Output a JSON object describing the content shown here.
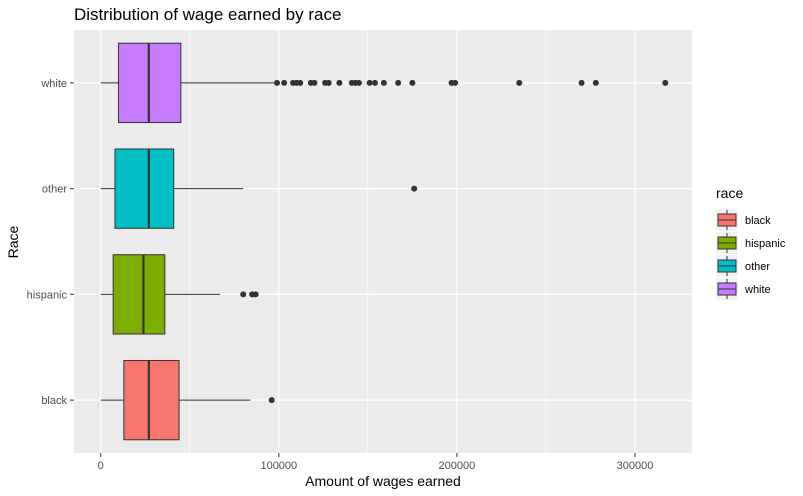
{
  "chart_data": {
    "type": "boxplot",
    "title": "Distribution of wage earned by race",
    "xlabel": "Amount of wages earned",
    "ylabel": "Race",
    "xlim": [
      -15000,
      332000
    ],
    "x_ticks": [
      0,
      100000,
      200000,
      300000
    ],
    "x_tick_labels": [
      "0",
      "100000",
      "200000",
      "300000"
    ],
    "grid": true,
    "orientation": "horizontal",
    "legend": {
      "title": "race",
      "position": "right",
      "entries": [
        "black",
        "hispanic",
        "other",
        "white"
      ]
    },
    "colors": {
      "black": "#F8766D",
      "hispanic": "#7CAE00",
      "other": "#00BFC4",
      "white": "#C77CFF"
    },
    "categories": [
      "black",
      "hispanic",
      "other",
      "white"
    ],
    "boxes": [
      {
        "name": "black",
        "whisker_low": 0,
        "q1": 13000,
        "median": 27000,
        "q3": 44000,
        "whisker_high": 84000,
        "outliers": [
          96000
        ]
      },
      {
        "name": "hispanic",
        "whisker_low": 0,
        "q1": 7000,
        "median": 24000,
        "q3": 36000,
        "whisker_high": 67000,
        "outliers": [
          80000,
          85000,
          87000
        ]
      },
      {
        "name": "other",
        "whisker_low": 0,
        "q1": 8000,
        "median": 27000,
        "q3": 41000,
        "whisker_high": 80000,
        "outliers": [
          176000
        ]
      },
      {
        "name": "white",
        "whisker_low": 0,
        "q1": 10000,
        "median": 27000,
        "q3": 45000,
        "whisker_high": 98000,
        "outliers": [
          99000,
          103000,
          108000,
          110000,
          112000,
          118000,
          120000,
          126000,
          128000,
          134000,
          141000,
          143000,
          145000,
          151000,
          154000,
          159000,
          167000,
          175000,
          197000,
          199000,
          235000,
          270000,
          278000,
          317000
        ]
      }
    ]
  }
}
